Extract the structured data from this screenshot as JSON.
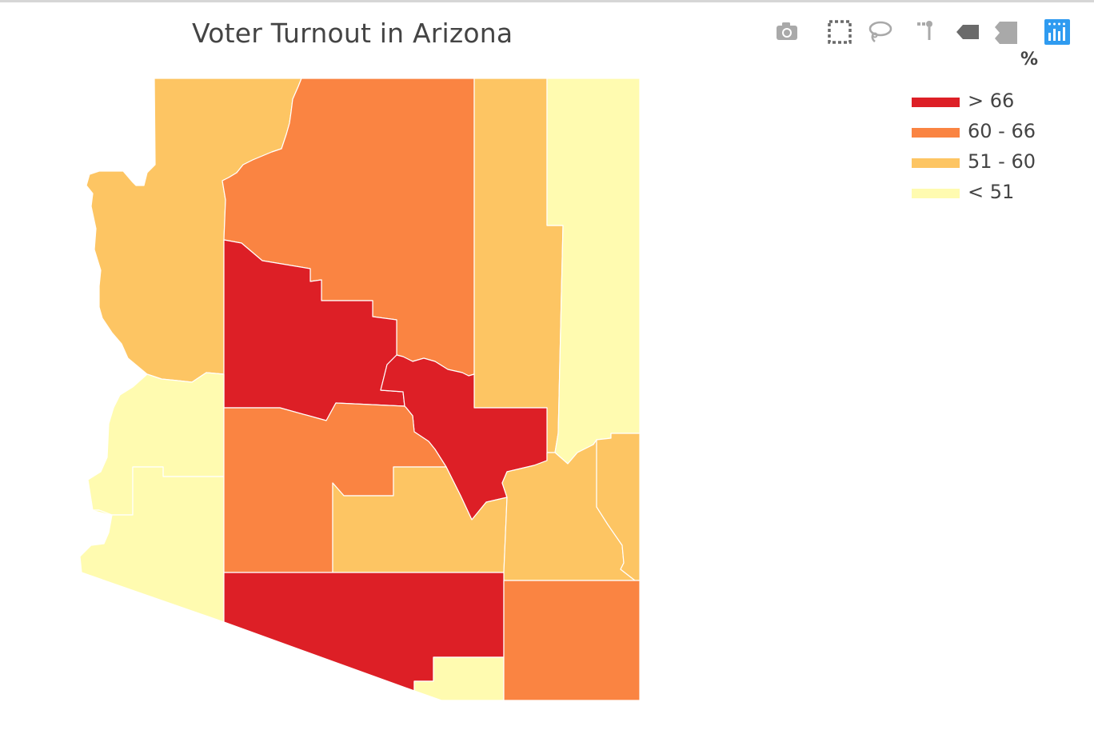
{
  "title": "Voter Turnout in Arizona",
  "legend": {
    "title": "%",
    "items": [
      {
        "label": "> 66",
        "color": "#dd1f26"
      },
      {
        "label": "60 - 66",
        "color": "#fa8442"
      },
      {
        "label": "51 - 60",
        "color": "#fdc563"
      },
      {
        "label": "< 51",
        "color": "#fffbb0"
      }
    ]
  },
  "modebar": {
    "icons": [
      "camera-icon",
      "box-select-icon",
      "lasso-select-icon",
      "reset-view-icon",
      "hover-closest-icon",
      "hover-compare-icon",
      "plotly-logo-icon"
    ],
    "logo_color": "#2f9bf0",
    "icon_color": "#a9a9a9",
    "active_icon_color": "#6a6a6a"
  },
  "map": {
    "state": "Arizona",
    "counties": [
      {
        "name": "Mohave",
        "bin": "51 - 60"
      },
      {
        "name": "Coconino",
        "bin": "60 - 66"
      },
      {
        "name": "Navajo",
        "bin": "51 - 60"
      },
      {
        "name": "Apache",
        "bin": "< 51"
      },
      {
        "name": "Yavapai",
        "bin": "> 66"
      },
      {
        "name": "La Paz",
        "bin": "< 51"
      },
      {
        "name": "Yuma",
        "bin": "< 51"
      },
      {
        "name": "Maricopa",
        "bin": "60 - 66"
      },
      {
        "name": "Gila",
        "bin": "> 66"
      },
      {
        "name": "Pinal",
        "bin": "51 - 60"
      },
      {
        "name": "Graham",
        "bin": "51 - 60"
      },
      {
        "name": "Greenlee",
        "bin": "51 - 60"
      },
      {
        "name": "Pima",
        "bin": "> 66"
      },
      {
        "name": "Santa Cruz",
        "bin": "< 51"
      },
      {
        "name": "Cochise",
        "bin": "60 - 66"
      }
    ]
  }
}
